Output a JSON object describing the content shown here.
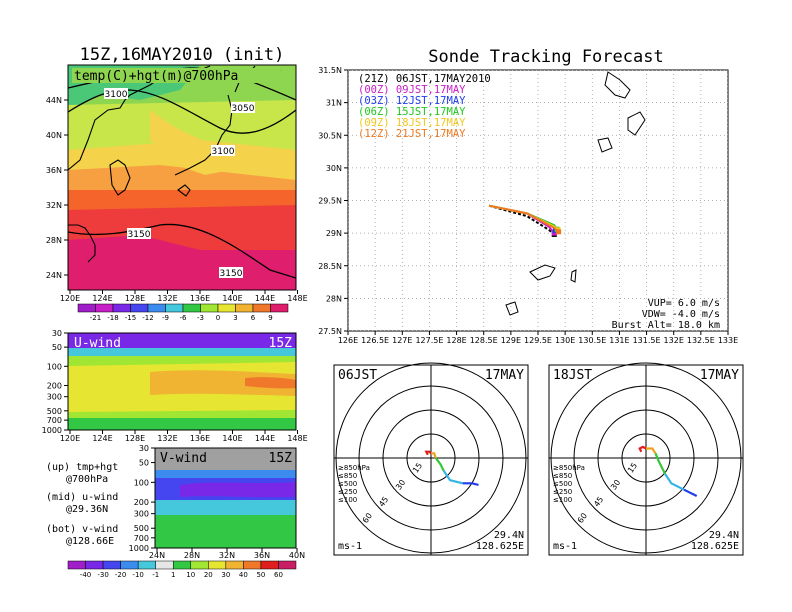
{
  "colors": {
    "temp_fill": [
      "#e01e6e",
      "#ee3c3c",
      "#f5642a",
      "#f7a042",
      "#f4d24a",
      "#c8e64a",
      "#8ed650",
      "#4ac878"
    ],
    "wind_fill": [
      "#a01ec8",
      "#7a28e8",
      "#4646f0",
      "#3c8cf0",
      "#46c8dc",
      "#32c846",
      "#a0e632",
      "#e6e632",
      "#f0b432",
      "#f0782a"
    ],
    "track": [
      "#000000",
      "#c81ec8",
      "#1e3cf0",
      "#1ec81e",
      "#f0c81e",
      "#f0781e"
    ]
  },
  "left": {
    "title": "15Z,16MAY2010 (init)",
    "map_label": "temp(C)+hgt(m)@700hPa",
    "contour_labels": [
      "3100",
      "3050",
      "3100",
      "3150",
      "3150"
    ],
    "lat_ticks": [
      "44N",
      "40N",
      "36N",
      "32N",
      "28N",
      "24N"
    ],
    "lon_ticks": [
      "120E",
      "124E",
      "128E",
      "132E",
      "136E",
      "140E",
      "144E",
      "148E"
    ],
    "temp_cbar": [
      "-21",
      "-18",
      "-15",
      "-12",
      "-9",
      "-6",
      "-3",
      "0",
      "3",
      "6",
      "9"
    ],
    "uwind_title": "U-wind",
    "uwind_time": "15Z",
    "vwind_title": "V-wind",
    "vwind_time": "15Z",
    "p_ticks": [
      "30",
      "50",
      "100",
      "200",
      "300",
      "500",
      "700",
      "1000"
    ],
    "vwind_lat_ticks": [
      "24N",
      "28N",
      "32N",
      "36N",
      "40N"
    ],
    "wind_cbar": [
      "-40",
      "-30",
      "-20",
      "-10",
      "-1",
      "1",
      "10",
      "20",
      "30",
      "40",
      "50",
      "60"
    ],
    "notes": [
      {
        "k": "(up) tmp+hgt",
        "v": "@700hPa"
      },
      {
        "k": "(mid) u-wind",
        "v": "@29.36N"
      },
      {
        "k": "(bot) v-wind",
        "v": "@128.66E"
      }
    ]
  },
  "forecast": {
    "title": "Sonde Tracking Forecast",
    "lat_ticks": [
      "31.5N",
      "31N",
      "30.5N",
      "30N",
      "29.5N",
      "29N",
      "28.5N",
      "28N",
      "27.5N"
    ],
    "lon_ticks": [
      "126E",
      "126.5E",
      "127E",
      "127.5E",
      "128E",
      "128.5E",
      "129E",
      "129.5E",
      "130E",
      "130.5E",
      "131E",
      "131.5E",
      "132E",
      "132.5E",
      "133E"
    ],
    "legend": [
      {
        "code": "(21Z)",
        "time": "06JST,17MAY2010"
      },
      {
        "code": "(00Z)",
        "time": "09JST,17MAY"
      },
      {
        "code": "(03Z)",
        "time": "12JST,17MAY"
      },
      {
        "code": "(06Z)",
        "time": "15JST,17MAY"
      },
      {
        "code": "(09Z)",
        "time": "18JST,17MAY"
      },
      {
        "code": "(12Z)",
        "time": "21JST,17MAY"
      }
    ],
    "info": [
      "VUP= 6.0 m/s",
      "VDW= -4.0 m/s",
      "Burst Alt= 18.0 km"
    ]
  },
  "chart_data": [
    {
      "type": "line",
      "title": "Sonde Tracking Forecast",
      "xlim": [
        126,
        133
      ],
      "ylim": [
        27.5,
        31.5
      ],
      "series": [
        {
          "name": "06JST,17MAY2010",
          "x": [
            128.6,
            129.3,
            129.7,
            129.8
          ],
          "y": [
            29.42,
            29.26,
            29.05,
            28.98
          ]
        },
        {
          "name": "09JST,17MAY",
          "x": [
            128.6,
            129.3,
            129.7,
            129.8
          ],
          "y": [
            29.42,
            29.3,
            29.1,
            29.0
          ]
        },
        {
          "name": "12JST,17MAY",
          "x": [
            128.6,
            129.3,
            129.8,
            129.82
          ],
          "y": [
            29.42,
            29.3,
            29.12,
            29.04
          ]
        },
        {
          "name": "15JST,17MAY",
          "x": [
            128.6,
            129.3,
            129.8,
            129.85
          ],
          "y": [
            29.42,
            29.3,
            29.12,
            29.06
          ]
        },
        {
          "name": "18JST,17MAY",
          "x": [
            128.6,
            129.3,
            129.8,
            129.87
          ],
          "y": [
            29.42,
            29.3,
            29.1,
            29.05
          ]
        },
        {
          "name": "21JST,17MAY",
          "x": [
            128.6,
            129.3,
            129.8,
            129.88
          ],
          "y": [
            29.42,
            29.3,
            29.08,
            29.02
          ]
        }
      ]
    },
    {
      "type": "line",
      "title": "06JST 17MAY",
      "info": [
        "29.4N",
        "128.625E"
      ],
      "unit": "ms-1",
      "rings": [
        "15",
        "30",
        "45",
        "60"
      ],
      "pressure_labels": [
        "≥850hPa",
        "≤850",
        "≤500",
        "≤250",
        "≤100"
      ],
      "series": [
        {
          "name": "≥850hPa",
          "u": [
            -2,
            -3,
            -1,
            0
          ],
          "v": [
            2,
            4,
            4,
            3
          ]
        },
        {
          "name": "≤850",
          "u": [
            0,
            2,
            3
          ],
          "v": [
            3,
            3,
            0
          ]
        },
        {
          "name": "≤500",
          "u": [
            3,
            6,
            8
          ],
          "v": [
            0,
            -4,
            -8
          ]
        },
        {
          "name": "≤250",
          "u": [
            8,
            12,
            20
          ],
          "v": [
            -8,
            -14,
            -16
          ]
        },
        {
          "name": "≤100",
          "u": [
            20,
            26,
            30
          ],
          "v": [
            -16,
            -16,
            -17
          ]
        }
      ]
    },
    {
      "type": "line",
      "title": "18JST 17MAY",
      "info": [
        "29.4N",
        "128.625E"
      ],
      "unit": "ms-1",
      "rings": [
        "15",
        "30",
        "45",
        "60"
      ],
      "pressure_labels": [
        "≥850hPa",
        "≤850",
        "≤500",
        "≤250",
        "≤100"
      ],
      "series": [
        {
          "name": "≥850hPa",
          "u": [
            -3,
            -4,
            -2,
            0
          ],
          "v": [
            4,
            6,
            7,
            6
          ]
        },
        {
          "name": "≤850",
          "u": [
            0,
            4,
            6
          ],
          "v": [
            6,
            6,
            3
          ]
        },
        {
          "name": "≤500",
          "u": [
            6,
            8,
            12
          ],
          "v": [
            3,
            -2,
            -10
          ]
        },
        {
          "name": "≤250",
          "u": [
            12,
            16,
            24
          ],
          "v": [
            -10,
            -16,
            -20
          ]
        },
        {
          "name": "≤100",
          "u": [
            24,
            28,
            32
          ],
          "v": [
            -20,
            -22,
            -24
          ]
        }
      ]
    }
  ],
  "hodo_left": {
    "title": "06JST",
    "date": "17MAY",
    "unit": "ms-1",
    "lat": "29.4N",
    "lon": "128.625E"
  },
  "hodo_right": {
    "title": "18JST",
    "date": "17MAY",
    "unit": "ms-1",
    "lat": "29.4N",
    "lon": "128.625E"
  },
  "hodo_rings": [
    "15",
    "30",
    "45",
    "60"
  ],
  "hodo_plabels": [
    "≥850hPa",
    "≤850",
    "≤500",
    "≤250",
    "≤100"
  ],
  "hodo_pcolors": [
    "#e01e1e",
    "#f0a01e",
    "#32c832",
    "#32b4e6",
    "#1e3cf0"
  ]
}
